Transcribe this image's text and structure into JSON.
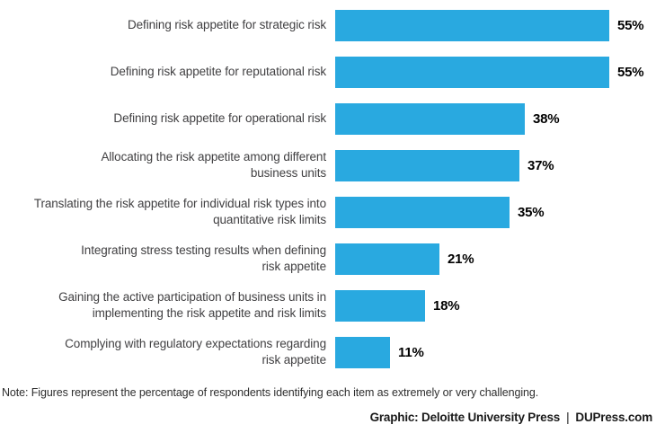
{
  "chart_data": {
    "type": "bar",
    "orientation": "horizontal",
    "title": "",
    "categories": [
      [
        "Defining risk appetite for strategic risk"
      ],
      [
        "Defining risk appetite for reputational risk"
      ],
      [
        "Defining risk appetite for operational risk"
      ],
      [
        "Allocating the risk appetite among different",
        "business units"
      ],
      [
        "Translating the risk appetite for individual risk types into",
        "quantitative risk limits"
      ],
      [
        "Integrating stress testing results when defining",
        "risk appetite"
      ],
      [
        "Gaining the active participation of business units in",
        "implementing the risk appetite and risk limits"
      ],
      [
        "Complying with regulatory expectations regarding",
        "risk appetite"
      ]
    ],
    "values": [
      55,
      55,
      38,
      37,
      35,
      21,
      18,
      11
    ],
    "value_suffix": "%",
    "max_value": 55,
    "xlim": [
      0,
      55
    ],
    "grid": false,
    "legend": false,
    "bar_color": "#29a9e0"
  },
  "note": "Note: Figures represent the percentage of respondents identifying each item as extremely or very challenging.",
  "footer": {
    "credit": "Graphic: Deloitte University Press",
    "separator": "|",
    "site": "DUPress.com"
  },
  "colors": {
    "bar": "#29a9e0",
    "label_text": "#414042",
    "value_text": "#000000",
    "background": "#ffffff"
  }
}
